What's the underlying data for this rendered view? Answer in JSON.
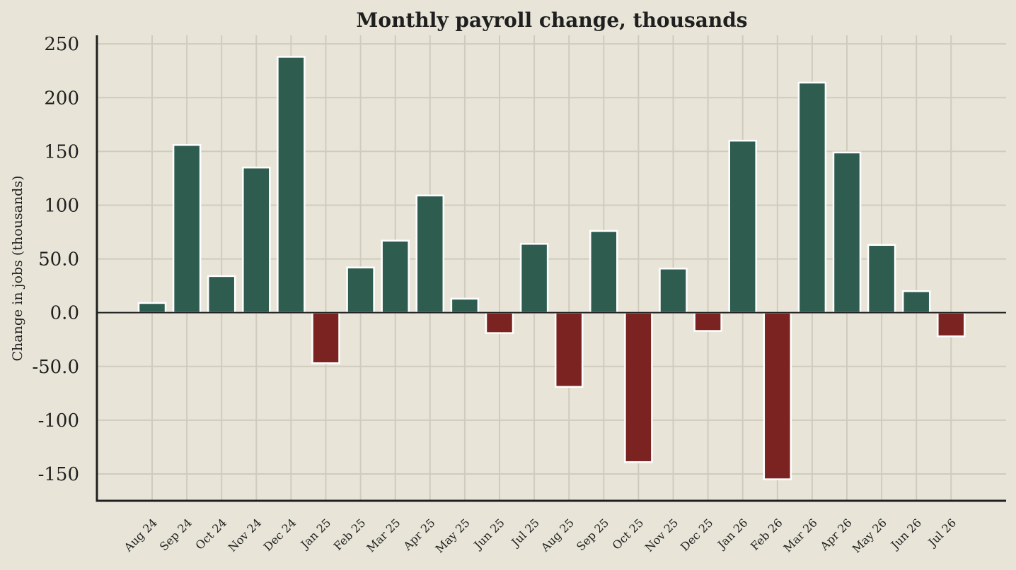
{
  "chart_data": {
    "type": "bar",
    "title": "Monthly payroll change, thousands",
    "xlabel": "",
    "ylabel": "Change in jobs (thousands)",
    "ylim": [
      -175,
      258
    ],
    "yticks": [
      -150,
      -100,
      -50,
      0,
      50,
      100,
      150,
      200,
      250
    ],
    "ytick_labels": [
      "-150",
      "-100",
      "-50.0",
      "0.0",
      "50.0",
      "100",
      "150",
      "200",
      "250"
    ],
    "grid": true,
    "legend": "none",
    "colors": {
      "positive": "#2e5d50",
      "negative": "#7a2320",
      "background": "#e8e5d8",
      "grid": "#cfcbbd",
      "axis": "#1f1f1f",
      "bar_edge": "#ffffff"
    },
    "categories": [
      "Aug 24",
      "Sep 24",
      "Oct 24",
      "Nov 24",
      "Dec 24",
      "Jan 25",
      "Feb 25",
      "Mar 25",
      "Apr 25",
      "May 25",
      "Jun 25",
      "Jul 25",
      "Aug 25",
      "Sep 25",
      "Oct 25",
      "Nov 25",
      "Dec 25",
      "Jan 26",
      "Feb 26",
      "Mar 26",
      "Apr 26",
      "May 26",
      "Jun 26",
      "Jul 26"
    ],
    "values": [
      9,
      156,
      34,
      135,
      238,
      -47,
      42,
      67,
      109,
      13,
      -19,
      64,
      -69,
      76,
      -139,
      41,
      -17,
      160,
      -155,
      214,
      149,
      63,
      20,
      -22
    ]
  }
}
